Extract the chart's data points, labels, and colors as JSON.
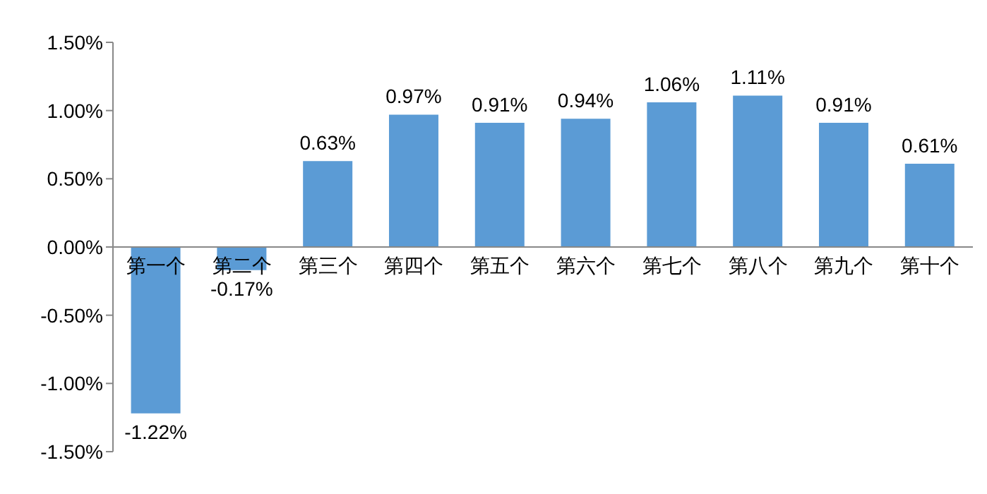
{
  "chart_data": {
    "type": "bar",
    "categories": [
      "第一个",
      "第二个",
      "第三个",
      "第四个",
      "第五个",
      "第六个",
      "第七个",
      "第八个",
      "第九个",
      "第十个"
    ],
    "values": [
      -1.22,
      -0.17,
      0.63,
      0.97,
      0.91,
      0.94,
      1.06,
      1.11,
      0.91,
      0.61
    ],
    "value_labels": [
      "-1.22%",
      "-0.17%",
      "0.63%",
      "0.97%",
      "0.91%",
      "0.94%",
      "1.06%",
      "1.11%",
      "0.91%",
      "0.61%"
    ],
    "color": "#5b9bd5",
    "ylim": [
      -1.5,
      1.5
    ],
    "yticks": [
      {
        "value": -1.5,
        "label": "-1.50%"
      },
      {
        "value": -1,
        "label": "-1.00%"
      },
      {
        "value": -0.5,
        "label": "-0.50%"
      },
      {
        "value": 0,
        "label": "0.00%"
      },
      {
        "value": 0.5,
        "label": "0.50%"
      },
      {
        "value": 1,
        "label": "1.00%"
      },
      {
        "value": 1.5,
        "label": "1.50%"
      }
    ],
    "grid": false,
    "legend": false
  }
}
